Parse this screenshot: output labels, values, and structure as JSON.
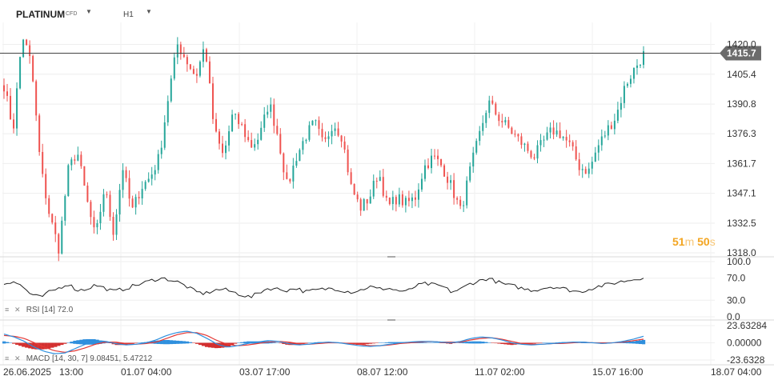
{
  "symbol": {
    "name": "PLATINUM",
    "type": "CFD"
  },
  "timeframe": "H1",
  "countdown": {
    "minutes": "51",
    "minutes_unit": "m",
    "seconds": "50",
    "seconds_unit": "s"
  },
  "colors": {
    "up": "#26a69a",
    "down": "#ef5350",
    "price_line": "#444444",
    "price_tag_bg": "#6b6b6b",
    "macd_line": "#2f8fdd",
    "signal_line": "#e53935",
    "rsi_line": "#222222"
  },
  "chart_data": [
    {
      "type": "candlestick",
      "title": "",
      "y_ticks": [
        "1420.0",
        "1405.4",
        "1390.8",
        "1376.3",
        "1361.7",
        "1347.1",
        "1332.5",
        "1318.0"
      ],
      "ylim": [
        1318.0,
        1420.0
      ],
      "current_price": 1415.7,
      "current_price_label": "1415.7",
      "x_ticks": [
        "26.06.2025",
        "13:00",
        "01.07 04:00",
        "03.07 17:00",
        "08.07 12:00",
        "11.07 02:00",
        "15.07 16:00",
        "18.07 04:00"
      ],
      "close_anchors": [
        1400,
        1378,
        1425,
        1410,
        1360,
        1336,
        1320,
        1358,
        1368,
        1345,
        1325,
        1350,
        1328,
        1360,
        1338,
        1350,
        1355,
        1365,
        1395,
        1420,
        1412,
        1404,
        1420,
        1378,
        1365,
        1385,
        1380,
        1370,
        1375,
        1392,
        1375,
        1350,
        1365,
        1375,
        1382,
        1370,
        1382,
        1375,
        1350,
        1340,
        1345,
        1358,
        1340,
        1345,
        1342,
        1345,
        1360,
        1365,
        1360,
        1350,
        1338,
        1358,
        1375,
        1392,
        1385,
        1380,
        1375,
        1370,
        1365,
        1372,
        1378,
        1376,
        1370,
        1360,
        1358,
        1370,
        1378,
        1385,
        1400,
        1408,
        1415
      ]
    },
    {
      "type": "line",
      "title": "RSI",
      "label": "RSI [14]",
      "value_label": "72.0",
      "y_ticks": [
        "100.0",
        "70.0",
        "30.0",
        "0.0"
      ],
      "ylim": [
        0,
        100
      ],
      "anchors": [
        60,
        65,
        55,
        40,
        35,
        45,
        52,
        60,
        48,
        50,
        58,
        52,
        46,
        50,
        55,
        60,
        65,
        70,
        68,
        63,
        55,
        45,
        42,
        48,
        50,
        45,
        40,
        35,
        45,
        52,
        50,
        48,
        52,
        45,
        48,
        50,
        52,
        48,
        45,
        48,
        55,
        50,
        52,
        48,
        45,
        55,
        60,
        58,
        55,
        45,
        50,
        60,
        65,
        70,
        63,
        58,
        55,
        50,
        48,
        52,
        55,
        52,
        48,
        45,
        50,
        55,
        58,
        62,
        65,
        68,
        72
      ]
    },
    {
      "type": "bar+line",
      "title": "MACD",
      "label": "MACD [14, 30, 7]",
      "values_label": [
        "9.08451",
        "5.47212"
      ],
      "y_ticks": [
        "23.63284",
        "0.00000",
        "-23.6328"
      ],
      "ylim": [
        -23.63284,
        23.63284
      ],
      "macd_anchors": [
        12,
        8,
        2,
        -6,
        -12,
        -15,
        -14,
        -8,
        -2,
        3,
        2,
        -1,
        -3,
        -2,
        0,
        4,
        10,
        14,
        16,
        13,
        6,
        -2,
        -6,
        -4,
        -1,
        1,
        3,
        2,
        -1,
        -3,
        -2,
        0,
        1,
        0,
        -2,
        -4,
        -5,
        -4,
        -2,
        0,
        1,
        2,
        2,
        1,
        0,
        2,
        6,
        8,
        7,
        4,
        0,
        -2,
        -3,
        -2,
        -1,
        0,
        1,
        1,
        0,
        -1,
        0,
        2,
        5,
        9
      ],
      "signal_anchors": [
        10,
        9,
        6,
        0,
        -6,
        -11,
        -13,
        -11,
        -7,
        -2,
        1,
        1,
        -1,
        -2,
        -1,
        1,
        6,
        11,
        14,
        14,
        10,
        3,
        -2,
        -4,
        -3,
        -1,
        1,
        2,
        1,
        -1,
        -2,
        -1,
        0,
        0,
        -1,
        -2,
        -4,
        -4,
        -3,
        -1,
        0,
        1,
        2,
        1,
        1,
        1,
        4,
        6,
        7,
        5,
        2,
        -1,
        -2,
        -2,
        -1,
        -1,
        0,
        1,
        0,
        0,
        0,
        1,
        3,
        5
      ]
    }
  ]
}
